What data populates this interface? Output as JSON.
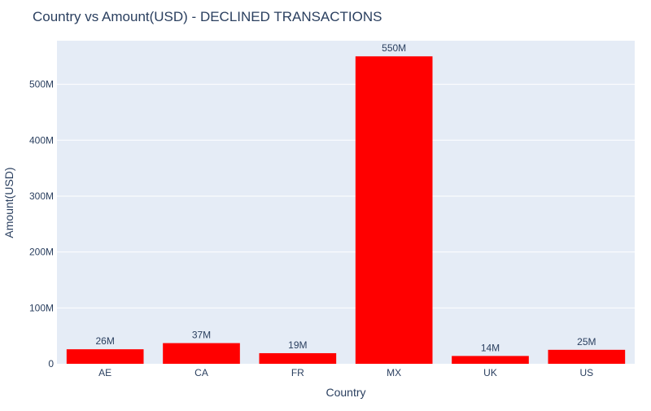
{
  "chart_data": {
    "type": "bar",
    "title": "Country vs Amount(USD) - DECLINED TRANSACTIONS",
    "xlabel": "Country",
    "ylabel": "Amount(USD)",
    "categories": [
      "AE",
      "CA",
      "FR",
      "MX",
      "UK",
      "US"
    ],
    "values": [
      26000000,
      37000000,
      19000000,
      550000000,
      14000000,
      25000000
    ],
    "data_labels": [
      "26M",
      "37M",
      "19M",
      "550M",
      "14M",
      "25M"
    ],
    "ylim": [
      0,
      578000000
    ],
    "yticks": [
      0,
      100000000,
      200000000,
      300000000,
      400000000,
      500000000
    ],
    "ytick_labels": [
      "0",
      "100M",
      "200M",
      "300M",
      "400M",
      "500M"
    ],
    "grid": true,
    "legend": "none",
    "colors": {
      "bar": "#ff0000",
      "plot_background": "#e5ecf6",
      "gridline": "#ffffff",
      "text": "#2a3f5f"
    }
  }
}
